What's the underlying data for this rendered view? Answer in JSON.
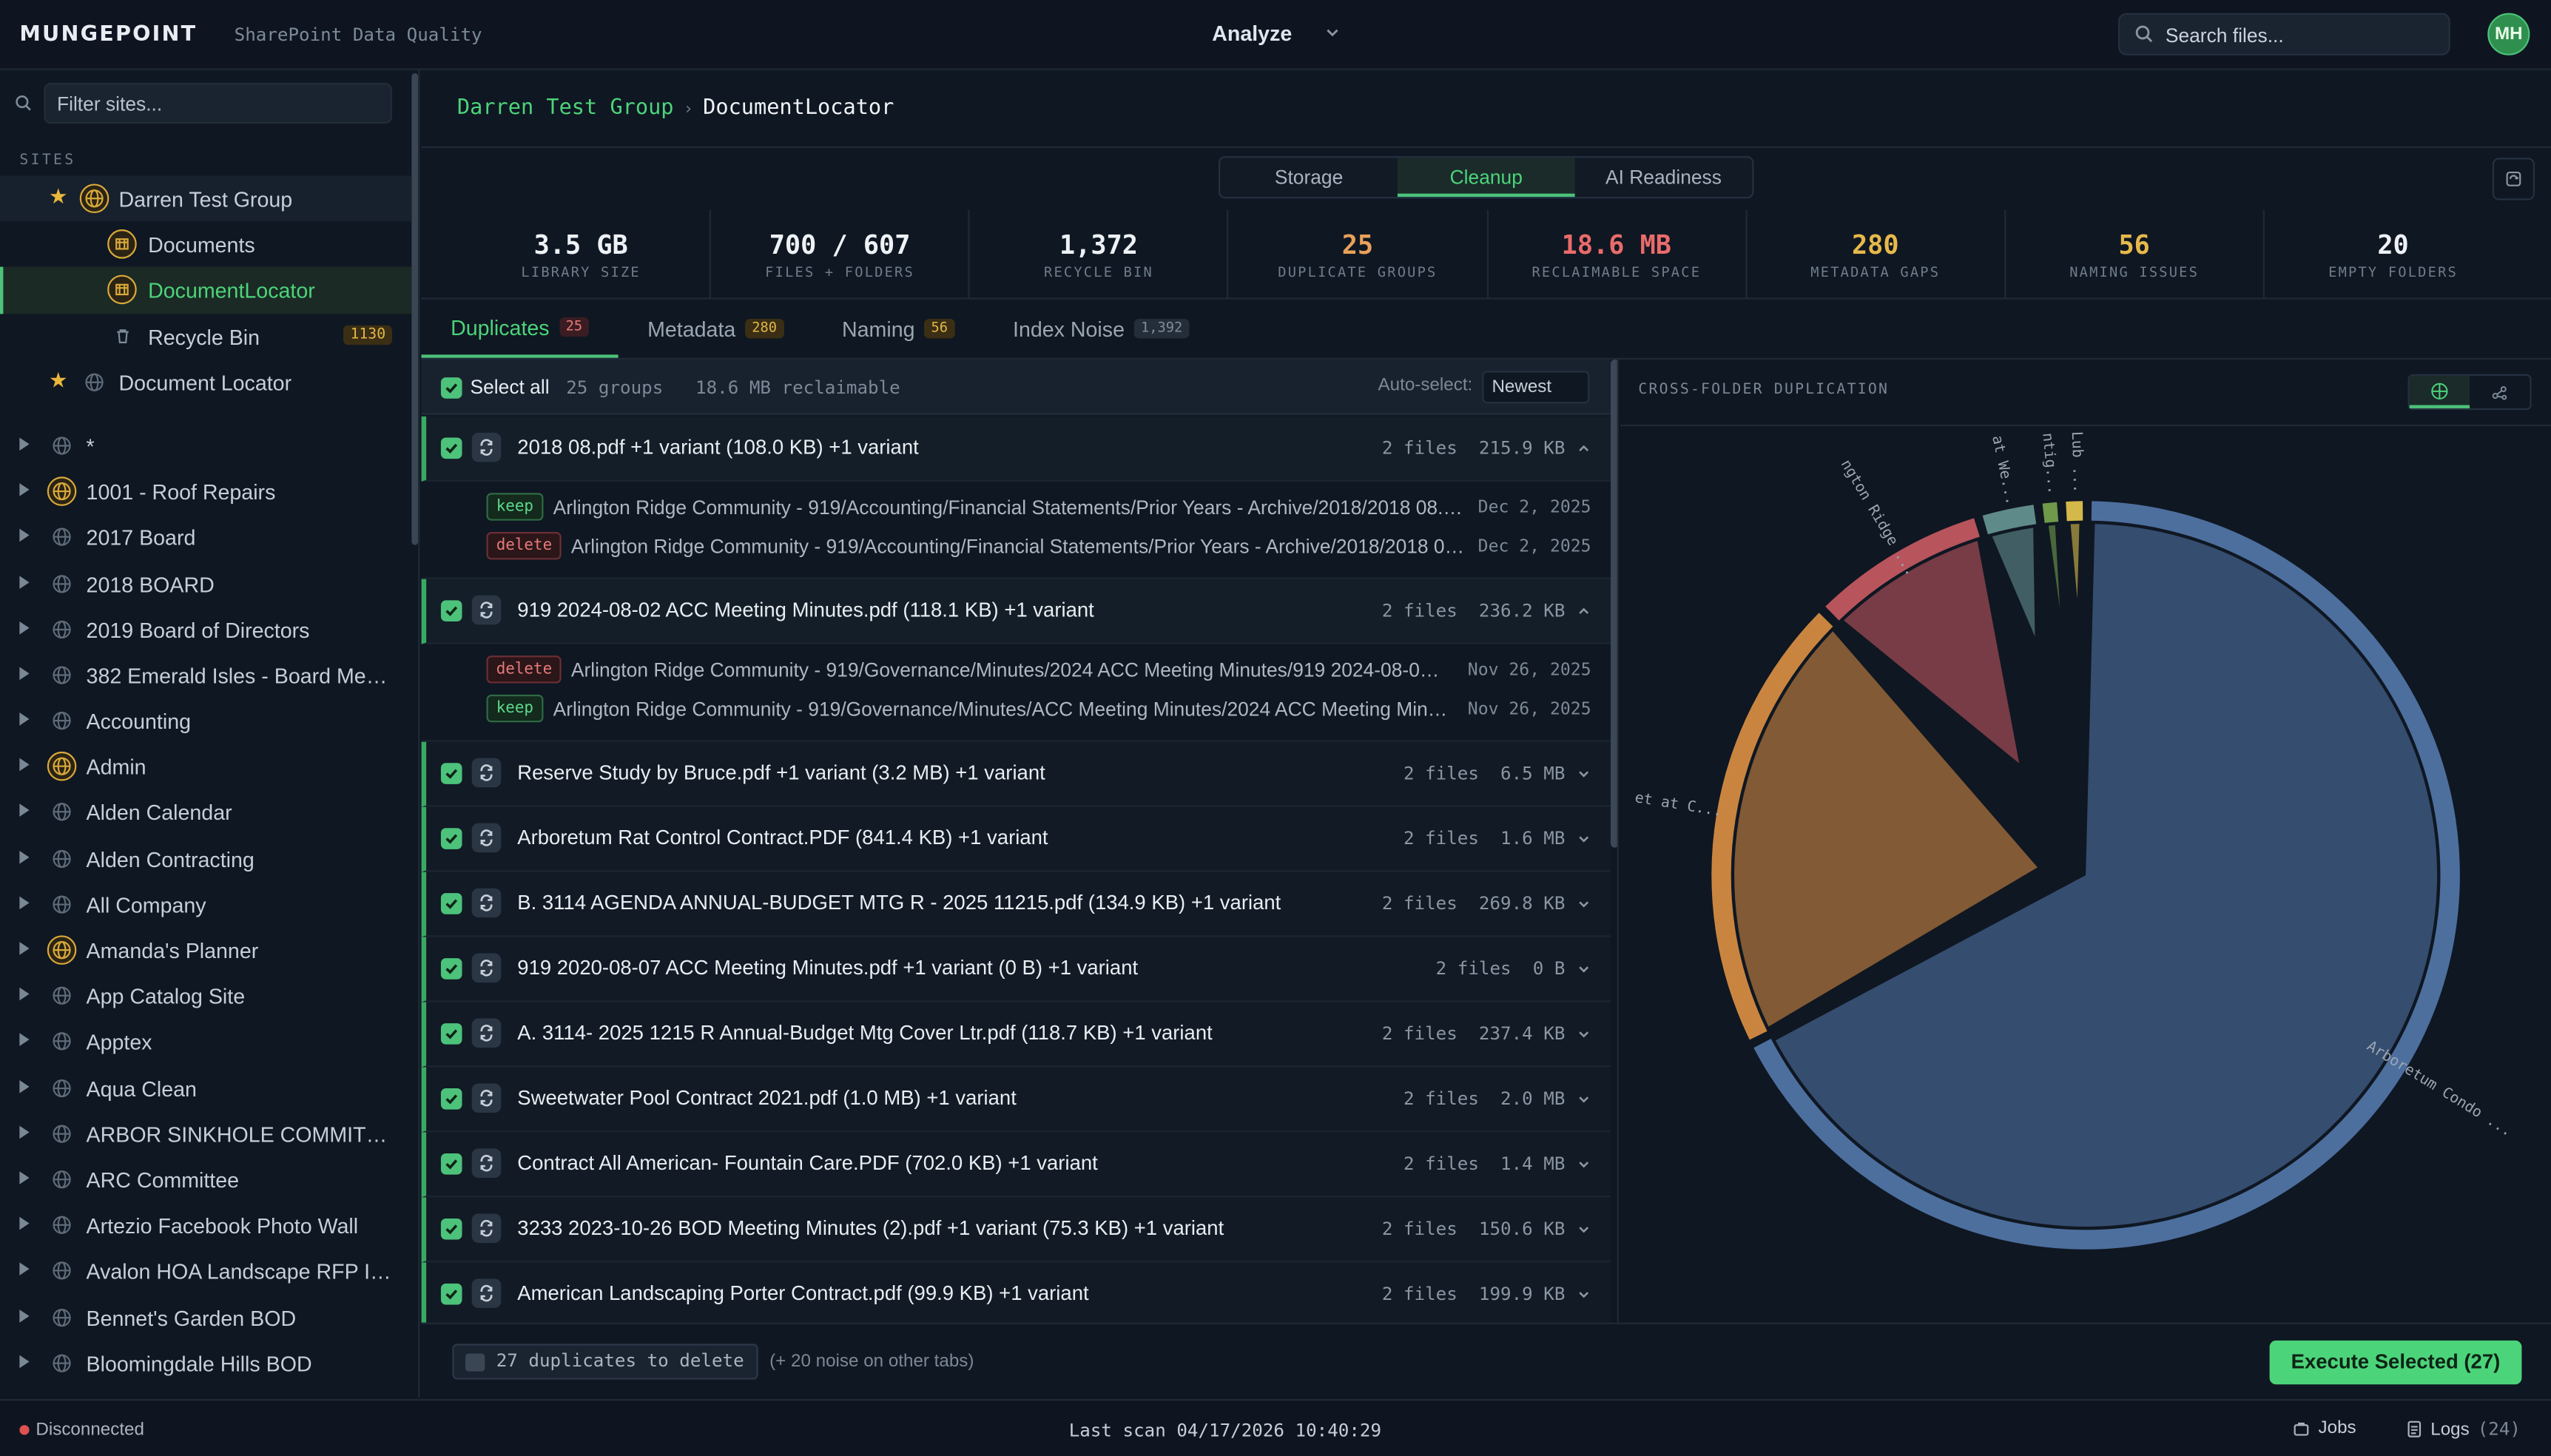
{
  "app": {
    "logo": "MUNGEPOINT",
    "subtitle": "SharePoint Data Quality"
  },
  "topbar": {
    "mode": "Analyze",
    "search_placeholder": "Search files...",
    "avatar": "MH"
  },
  "sidebar": {
    "filter_placeholder": "Filter sites...",
    "sites_label": "SITES",
    "pinned": [
      {
        "label": "Darren Test Group",
        "starred": true,
        "icon": "globe-gold-icon"
      },
      {
        "label": "Documents",
        "icon": "library-icon"
      },
      {
        "label": "DocumentLocator",
        "icon": "library-icon"
      },
      {
        "label": "Recycle Bin",
        "icon": "trash-icon",
        "count": "1130"
      },
      {
        "label": "Document Locator",
        "starred": true,
        "icon": "globe-icon"
      }
    ],
    "sites": [
      {
        "label": "*",
        "gold": false
      },
      {
        "label": "1001 - Roof Repairs",
        "gold": true
      },
      {
        "label": "2017 Board",
        "gold": false
      },
      {
        "label": "2018 BOARD",
        "gold": false
      },
      {
        "label": "2019 Board of Directors",
        "gold": false
      },
      {
        "label": "382 Emerald Isles - Board Memb...",
        "gold": false
      },
      {
        "label": "Accounting",
        "gold": false
      },
      {
        "label": "Admin",
        "gold": true
      },
      {
        "label": "Alden Calendar",
        "gold": false
      },
      {
        "label": "Alden Contracting",
        "gold": false
      },
      {
        "label": "All Company",
        "gold": false
      },
      {
        "label": "Amanda's Planner",
        "gold": true
      },
      {
        "label": "App Catalog Site",
        "gold": false
      },
      {
        "label": "Apptex",
        "gold": false
      },
      {
        "label": "Aqua Clean",
        "gold": false
      },
      {
        "label": "ARBOR SINKHOLE COMMITTEE",
        "gold": false
      },
      {
        "label": "ARC Committee",
        "gold": false
      },
      {
        "label": "Artezio Facebook Photo Wall",
        "gold": false
      },
      {
        "label": "Avalon HOA Landscape RFP Invit...",
        "gold": false
      },
      {
        "label": "Bennet's Garden BOD",
        "gold": false
      },
      {
        "label": "Bloomingdale Hills BOD",
        "gold": false
      }
    ]
  },
  "breadcrumb": {
    "parent": "Darren Test Group",
    "current": "DocumentLocator"
  },
  "view_tabs": [
    "Storage",
    "Cleanup",
    "AI Readiness"
  ],
  "stats": [
    {
      "value": "3.5 GB",
      "label": "LIBRARY SIZE",
      "color": "#eef2f6"
    },
    {
      "value": "700 / 607",
      "label": "FILES + FOLDERS",
      "color": "#eef2f6"
    },
    {
      "value": "1,372",
      "label": "RECYCLE BIN",
      "color": "#eef2f6"
    },
    {
      "value": "25",
      "label": "DUPLICATE GROUPS",
      "color": "#e9a15a"
    },
    {
      "value": "18.6 MB",
      "label": "RECLAIMABLE SPACE",
      "color": "#ea6b6b"
    },
    {
      "value": "280",
      "label": "METADATA GAPS",
      "color": "#e7b94b"
    },
    {
      "value": "56",
      "label": "NAMING ISSUES",
      "color": "#e7b94b"
    },
    {
      "value": "20",
      "label": "EMPTY FOLDERS",
      "color": "#eef2f6"
    }
  ],
  "subtabs": [
    {
      "label": "Duplicates",
      "badge": "25",
      "style": "red"
    },
    {
      "label": "Metadata",
      "badge": "280",
      "style": "yel"
    },
    {
      "label": "Naming",
      "badge": "56",
      "style": "yel"
    },
    {
      "label": "Index Noise",
      "badge": "1,392",
      "style": "gray"
    }
  ],
  "listbar": {
    "select_all": "Select all",
    "groups": "25 groups",
    "reclaimable": "18.6 MB reclaimable",
    "auto_select_label": "Auto-select:",
    "auto_select_value": "Newest"
  },
  "groups": [
    {
      "name": "2018 08.pdf +1 variant (108.0 KB) +1 variant",
      "meta": "2 files  215.9 KB",
      "expanded": true,
      "files": [
        {
          "action": "keep",
          "path": "Arlington Ridge Community - 919/Accounting/Financial Statements/Prior Years - Archive/2018/2018 08.pdf",
          "date": "Dec 2, 2025"
        },
        {
          "action": "delete",
          "path": "Arlington Ridge Community - 919/Accounting/Financial Statements/Prior Years - Archive/2018/2018 09...",
          "date": "Dec 2, 2025"
        }
      ]
    },
    {
      "name": "919 2024-08-02 ACC Meeting Minutes.pdf (118.1 KB) +1 variant",
      "meta": "2 files  236.2 KB",
      "expanded": true,
      "files": [
        {
          "action": "delete",
          "path": "Arlington Ridge Community - 919/Governance/Minutes/2024 ACC Meeting Minutes/919 2024-08-02 A...",
          "date": "Nov 26, 2025"
        },
        {
          "action": "keep",
          "path": "Arlington Ridge Community - 919/Governance/Minutes/ACC Meeting Minutes/2024 ACC Meeting Minute...",
          "date": "Nov 26, 2025"
        }
      ]
    },
    {
      "name": "Reserve Study by Bruce.pdf +1 variant (3.2 MB) +1 variant",
      "meta": "2 files  6.5 MB"
    },
    {
      "name": "Arboretum Rat Control Contract.PDF (841.4 KB) +1 variant",
      "meta": "2 files  1.6 MB"
    },
    {
      "name": "B. 3114 AGENDA ANNUAL-BUDGET MTG R - 2025 11215.pdf (134.9 KB) +1 variant",
      "meta": "2 files  269.8 KB"
    },
    {
      "name": "919 2020-08-07 ACC Meeting Minutes.pdf +1 variant (0 B) +1 variant",
      "meta": "2 files  0 B"
    },
    {
      "name": "A. 3114- 2025 1215 R Annual-Budget Mtg Cover Ltr.pdf (118.7 KB) +1 variant",
      "meta": "2 files  237.4 KB"
    },
    {
      "name": "Sweetwater Pool Contract 2021.pdf (1.0 MB) +1 variant",
      "meta": "2 files  2.0 MB"
    },
    {
      "name": "Contract All American- Fountain Care.PDF (702.0 KB) +1 variant",
      "meta": "2 files  1.4 MB"
    },
    {
      "name": "3233 2023-10-26 BOD Meeting Minutes (2).pdf +1 variant (75.3 KB) +1 variant",
      "meta": "2 files  150.6 KB"
    },
    {
      "name": "American Landscaping Porter Contract.pdf (99.9 KB) +1 variant",
      "meta": "2 files  199.9 KB"
    }
  ],
  "footer": {
    "to_delete": "27 duplicates to delete",
    "noise_note": "(+ 20 noise on other tabs)",
    "execute": "Execute Selected (27)"
  },
  "chart_data": {
    "type": "pie",
    "title": "CROSS-FOLDER DUPLICATION",
    "slices": [
      {
        "label": "Arboretum Condo ...",
        "value": 67.5,
        "color": "#4d6f9e"
      },
      {
        "label": "et at C...",
        "value": 20.0,
        "color": "#c98540"
      },
      {
        "label": "ngton Ridge ...",
        "value": 7.8,
        "color": "#b8545c"
      },
      {
        "label": "at We...",
        "value": 2.6,
        "color": "#5f8a8a"
      },
      {
        "label": "ntig...",
        "value": 1.0,
        "color": "#6f9a4a"
      },
      {
        "label": "Lub ...",
        "value": 1.1,
        "color": "#d4b84a"
      }
    ]
  },
  "status": {
    "connection": "Disconnected",
    "last_scan": "Last scan 04/17/2026 10:40:29",
    "jobs": "Jobs",
    "logs": "Logs",
    "logs_count": "(24)"
  }
}
